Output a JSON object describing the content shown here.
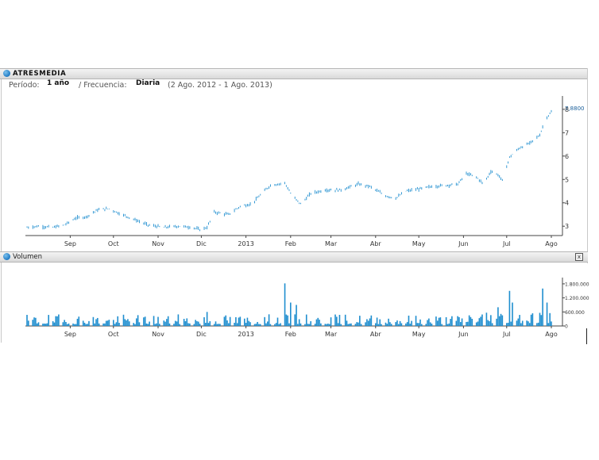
{
  "header": {
    "title": "ATRESMEDIA",
    "periodo_label": "Período:",
    "periodo_value": "1 año",
    "frecuencia_label": "/ Frecuencia:",
    "frecuencia_value": "Diaria",
    "range": "(2 Ago. 2012 - 1 Ago. 2013)"
  },
  "volume_panel": {
    "title": "Volumen",
    "close_label": "x"
  },
  "colors": {
    "accent": "#1f8ecf",
    "grid": "#cfcfcf",
    "text": "#333333"
  },
  "chart_data": [
    {
      "type": "candlestick",
      "title": "ATRESMEDIA",
      "ylim": [
        2.6,
        8.3
      ],
      "yticks": [
        3,
        4,
        5,
        6,
        7,
        8
      ],
      "last_value_label": "7,8800",
      "x_range": [
        "2012-08-02",
        "2013-08-01"
      ],
      "xticks": [
        {
          "label": "Sep",
          "date": "2012-09-01"
        },
        {
          "label": "Oct",
          "date": "2012-10-01"
        },
        {
          "label": "Nov",
          "date": "2012-11-01"
        },
        {
          "label": "Dic",
          "date": "2012-12-01"
        },
        {
          "label": "2013",
          "date": "2013-01-01"
        },
        {
          "label": "Feb",
          "date": "2013-02-01"
        },
        {
          "label": "Mar",
          "date": "2013-03-01"
        },
        {
          "label": "Abr",
          "date": "2013-04-01"
        },
        {
          "label": "May",
          "date": "2013-05-01"
        },
        {
          "label": "Jun",
          "date": "2013-06-01"
        },
        {
          "label": "Jul",
          "date": "2013-07-01"
        },
        {
          "label": "Ago",
          "date": "2013-08-01"
        }
      ],
      "close_anchors": [
        [
          "2012-08-02",
          2.95
        ],
        [
          "2012-08-10",
          3.0
        ],
        [
          "2012-08-20",
          2.95
        ],
        [
          "2012-08-28",
          3.05
        ],
        [
          "2012-09-05",
          3.35
        ],
        [
          "2012-09-12",
          3.4
        ],
        [
          "2012-09-20",
          3.7
        ],
        [
          "2012-09-28",
          3.75
        ],
        [
          "2012-10-05",
          3.55
        ],
        [
          "2012-10-15",
          3.3
        ],
        [
          "2012-10-25",
          3.05
        ],
        [
          "2012-11-05",
          2.95
        ],
        [
          "2012-11-15",
          3.0
        ],
        [
          "2012-11-25",
          2.95
        ],
        [
          "2012-11-30",
          2.85
        ],
        [
          "2012-12-05",
          2.95
        ],
        [
          "2012-12-10",
          3.6
        ],
        [
          "2012-12-20",
          3.5
        ],
        [
          "2012-12-28",
          3.85
        ],
        [
          "2013-01-05",
          3.95
        ],
        [
          "2013-01-12",
          4.4
        ],
        [
          "2013-01-18",
          4.75
        ],
        [
          "2013-01-28",
          4.85
        ],
        [
          "2013-02-02",
          4.3
        ],
        [
          "2013-02-08",
          3.95
        ],
        [
          "2013-02-15",
          4.4
        ],
        [
          "2013-02-25",
          4.55
        ],
        [
          "2013-03-08",
          4.55
        ],
        [
          "2013-03-20",
          4.8
        ],
        [
          "2013-03-28",
          4.7
        ],
        [
          "2013-04-08",
          4.3
        ],
        [
          "2013-04-15",
          4.2
        ],
        [
          "2013-04-22",
          4.5
        ],
        [
          "2013-05-02",
          4.6
        ],
        [
          "2013-05-10",
          4.7
        ],
        [
          "2013-05-20",
          4.75
        ],
        [
          "2013-05-28",
          4.8
        ],
        [
          "2013-06-03",
          5.25
        ],
        [
          "2013-06-10",
          5.1
        ],
        [
          "2013-06-15",
          4.8
        ],
        [
          "2013-06-20",
          5.35
        ],
        [
          "2013-06-25",
          5.2
        ],
        [
          "2013-06-28",
          4.95
        ],
        [
          "2013-07-03",
          5.95
        ],
        [
          "2013-07-10",
          6.35
        ],
        [
          "2013-07-17",
          6.55
        ],
        [
          "2013-07-24",
          6.9
        ],
        [
          "2013-07-28",
          7.6
        ],
        [
          "2013-08-01",
          7.88
        ]
      ]
    },
    {
      "type": "bar",
      "title": "Volumen",
      "ylim": [
        0,
        2000000
      ],
      "yticks": [
        {
          "label": "0",
          "value": 0
        },
        {
          "label": "600.000",
          "value": 600000
        },
        {
          "label": "1.200.000",
          "value": 1200000
        },
        {
          "label": "1.800.000",
          "value": 1800000
        }
      ],
      "x_range": [
        "2012-08-02",
        "2013-08-01"
      ],
      "xticks": [
        "Sep",
        "Oct",
        "Nov",
        "Dic",
        "2013",
        "Feb",
        "Mar",
        "Abr",
        "May",
        "Jun",
        "Jul",
        "Ago"
      ],
      "spikes": [
        [
          "2013-01-28",
          1820000
        ],
        [
          "2013-02-01",
          1000000
        ],
        [
          "2013-02-05",
          900000
        ],
        [
          "2013-07-03",
          1500000
        ],
        [
          "2013-07-05",
          1000000
        ],
        [
          "2013-07-26",
          1600000
        ],
        [
          "2013-07-29",
          1000000
        ],
        [
          "2013-06-25",
          800000
        ],
        [
          "2012-12-05",
          600000
        ]
      ]
    }
  ]
}
